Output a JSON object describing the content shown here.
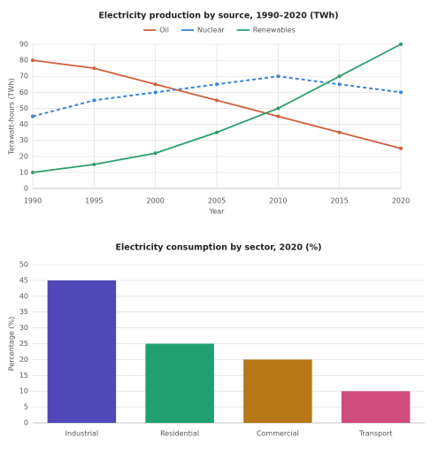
{
  "chart_data": [
    {
      "type": "line",
      "title": "Electricity production by source, 1990–2020 (TWh)",
      "x": [
        1990,
        1995,
        2000,
        2005,
        2010,
        2015,
        2020
      ],
      "series": [
        {
          "name": "Oil",
          "color": "#d0603a",
          "dashed": false,
          "values": [
            80,
            75,
            65,
            55,
            45,
            35,
            25
          ]
        },
        {
          "name": "Nuclear",
          "color": "#3a86d8",
          "dashed": true,
          "values": [
            45,
            55,
            60,
            65,
            70,
            65,
            60
          ]
        },
        {
          "name": "Renewables",
          "color": "#2e9e6e",
          "dashed": false,
          "values": [
            10,
            15,
            22,
            35,
            50,
            70,
            90
          ]
        }
      ],
      "xlim": [
        1990,
        2020
      ],
      "xticks": [
        1990,
        1995,
        2000,
        2005,
        2010,
        2015,
        2020
      ],
      "ylim": [
        0,
        90
      ],
      "yticks": [
        0,
        10,
        20,
        30,
        40,
        50,
        60,
        70,
        80,
        90
      ],
      "xlabel": "Year",
      "ylabel": "Terawatt-hours (TWh)",
      "grid": true,
      "legend": "top"
    },
    {
      "type": "bar",
      "title": "Electricity consumption by sector, 2020 (%)",
      "categories": [
        "Industrial",
        "Residential",
        "Commercial",
        "Transport"
      ],
      "values": [
        45,
        25,
        20,
        10
      ],
      "colors": [
        "#5048b8",
        "#20a070",
        "#b87818",
        "#d04c7c"
      ],
      "ylim": [
        0,
        50
      ],
      "yticks": [
        0,
        5,
        10,
        15,
        20,
        25,
        30,
        35,
        40,
        45,
        50
      ],
      "ylabel": "Percentage (%)",
      "grid": true
    }
  ]
}
